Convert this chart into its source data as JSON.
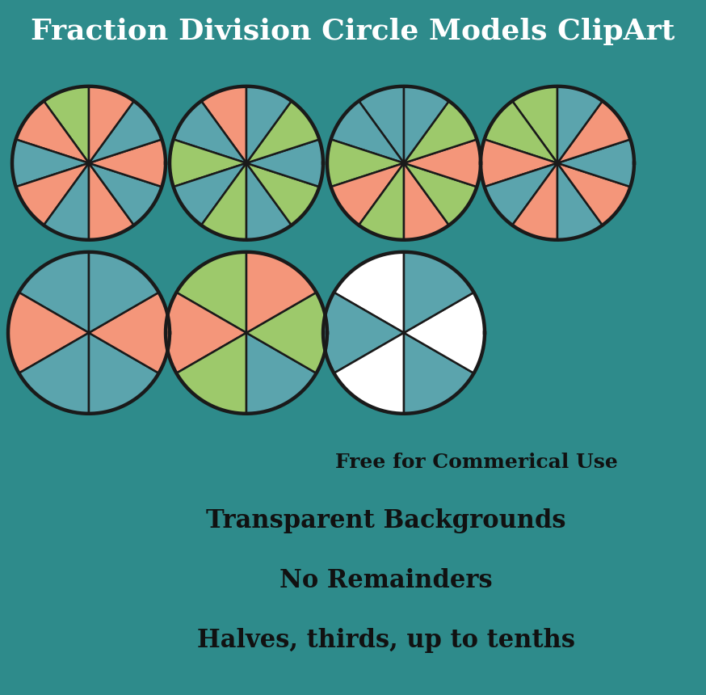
{
  "title": "Fraction Division Circle Models ClipArt",
  "title_color": "#ffffff",
  "header_bg": "#2E8B8B",
  "body_bg": "#ffffff",
  "outline": "#1a1a1a",
  "banner1_bg": "#F5C842",
  "banner1_text": "Free for Commerical Use",
  "banner2_bg": "#8ECDD4",
  "banner2_lines": [
    "Transparent Backgrounds",
    "No Remainders",
    "Halves, thirds, up to tenths"
  ],
  "circles": [
    {
      "row": 0,
      "col": 0,
      "n": 10,
      "colors": [
        "#9DC96B",
        "#F4967A",
        "#5BA4AD",
        "#F4967A",
        "#5BA4AD",
        "#F4967A",
        "#5BA4AD",
        "#F4967A",
        "#5BA4AD",
        "#F4967A"
      ],
      "start_angle": 90
    },
    {
      "row": 0,
      "col": 1,
      "n": 10,
      "colors": [
        "#F4967A",
        "#5BA4AD",
        "#9DC96B",
        "#5BA4AD",
        "#9DC96B",
        "#5BA4AD",
        "#9DC96B",
        "#5BA4AD",
        "#9DC96B",
        "#5BA4AD"
      ],
      "start_angle": 90
    },
    {
      "row": 0,
      "col": 2,
      "n": 10,
      "colors": [
        "#5BA4AD",
        "#5BA4AD",
        "#9DC96B",
        "#F4967A",
        "#9DC96B",
        "#F4967A",
        "#9DC96B",
        "#F4967A",
        "#9DC96B",
        "#5BA4AD"
      ],
      "start_angle": 90
    },
    {
      "row": 0,
      "col": 3,
      "n": 10,
      "colors": [
        "#9DC96B",
        "#9DC96B",
        "#F4967A",
        "#5BA4AD",
        "#F4967A",
        "#5BA4AD",
        "#F4967A",
        "#5BA4AD",
        "#F4967A",
        "#5BA4AD"
      ],
      "start_angle": 90
    },
    {
      "row": 1,
      "col": 0,
      "n": 6,
      "colors": [
        "#5BA4AD",
        "#F4967A",
        "#5BA4AD",
        "#5BA4AD",
        "#F4967A",
        "#5BA4AD"
      ],
      "start_angle": 90
    },
    {
      "row": 1,
      "col": 1,
      "n": 6,
      "colors": [
        "#9DC96B",
        "#F4967A",
        "#9DC96B",
        "#5BA4AD",
        "#9DC96B",
        "#F4967A"
      ],
      "start_angle": 90
    },
    {
      "row": 1,
      "col": 2,
      "n": 6,
      "colors": [
        "#ffffff",
        "#5BA4AD",
        "#ffffff",
        "#5BA4AD",
        "#ffffff",
        "#5BA4AD"
      ],
      "start_angle": 90
    }
  ],
  "row0_cols": 4,
  "row1_cols": 3,
  "fig_width": 8.74,
  "fig_height": 8.6
}
